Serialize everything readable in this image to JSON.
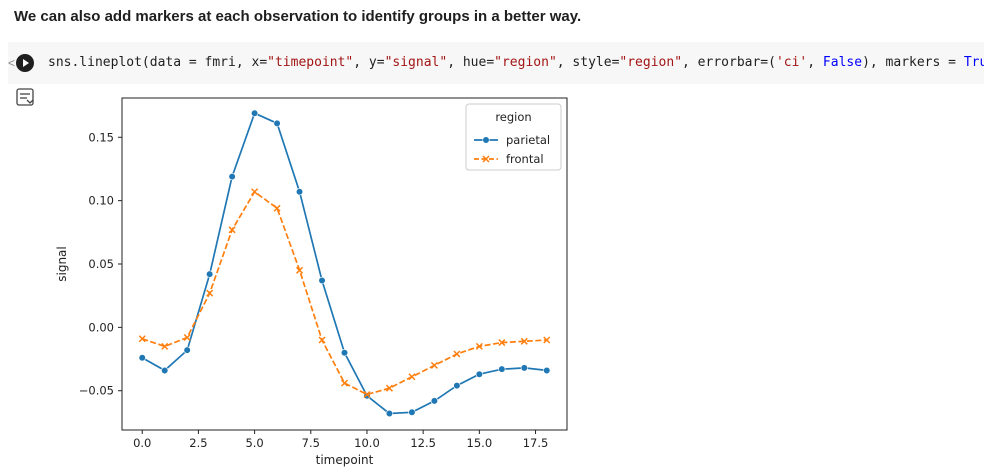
{
  "heading": "We can also add markers at each observation to identify groups in a better way.",
  "cell_edge": "<",
  "code": {
    "t1": "sns.lineplot(data = fmri, x=",
    "s1": "\"timepoint\"",
    "t2": ", y=",
    "s2": "\"signal\"",
    "t3": ", hue=",
    "s3": "\"region\"",
    "t4": ", style=",
    "s4": "\"region\"",
    "t5": ", errorbar=(",
    "s5": "'ci'",
    "t6": ", ",
    "k1": "False",
    "t7": "), markers = ",
    "k2": "True",
    "t8": ");"
  },
  "icons": {
    "run": "play-circle-icon",
    "output": "output-toggle-icon"
  },
  "chart_data": {
    "type": "line",
    "xlabel": "timepoint",
    "ylabel": "signal",
    "xlim": [
      -0.9,
      18.9
    ],
    "ylim": [
      -0.081,
      0.181
    ],
    "xticks": [
      "0.0",
      "2.5",
      "5.0",
      "7.5",
      "10.0",
      "12.5",
      "15.0",
      "17.5"
    ],
    "xtick_values": [
      0,
      2.5,
      5,
      7.5,
      10,
      12.5,
      15,
      17.5
    ],
    "yticks": [
      "−0.05",
      "0.00",
      "0.05",
      "0.10",
      "0.15"
    ],
    "ytick_values": [
      -0.05,
      0,
      0.05,
      0.1,
      0.15
    ],
    "grid": false,
    "legend": {
      "title": "region",
      "placement": "top-right"
    },
    "x": [
      0,
      1,
      2,
      3,
      4,
      5,
      6,
      7,
      8,
      9,
      10,
      11,
      12,
      13,
      14,
      15,
      16,
      17,
      18
    ],
    "series": [
      {
        "name": "parietal",
        "color": "#1f77b4",
        "dash": "solid",
        "marker": "circle",
        "values": [
          -0.024,
          -0.034,
          -0.018,
          0.042,
          0.119,
          0.169,
          0.161,
          0.107,
          0.037,
          -0.02,
          -0.054,
          -0.068,
          -0.067,
          -0.058,
          -0.046,
          -0.037,
          -0.033,
          -0.032,
          -0.034
        ]
      },
      {
        "name": "frontal",
        "color": "#ff7f0e",
        "dash": "dashed",
        "marker": "x",
        "values": [
          -0.009,
          -0.015,
          -0.008,
          0.027,
          0.077,
          0.107,
          0.094,
          0.045,
          -0.01,
          -0.044,
          -0.053,
          -0.048,
          -0.039,
          -0.03,
          -0.021,
          -0.015,
          -0.012,
          -0.011,
          -0.01
        ]
      }
    ]
  }
}
